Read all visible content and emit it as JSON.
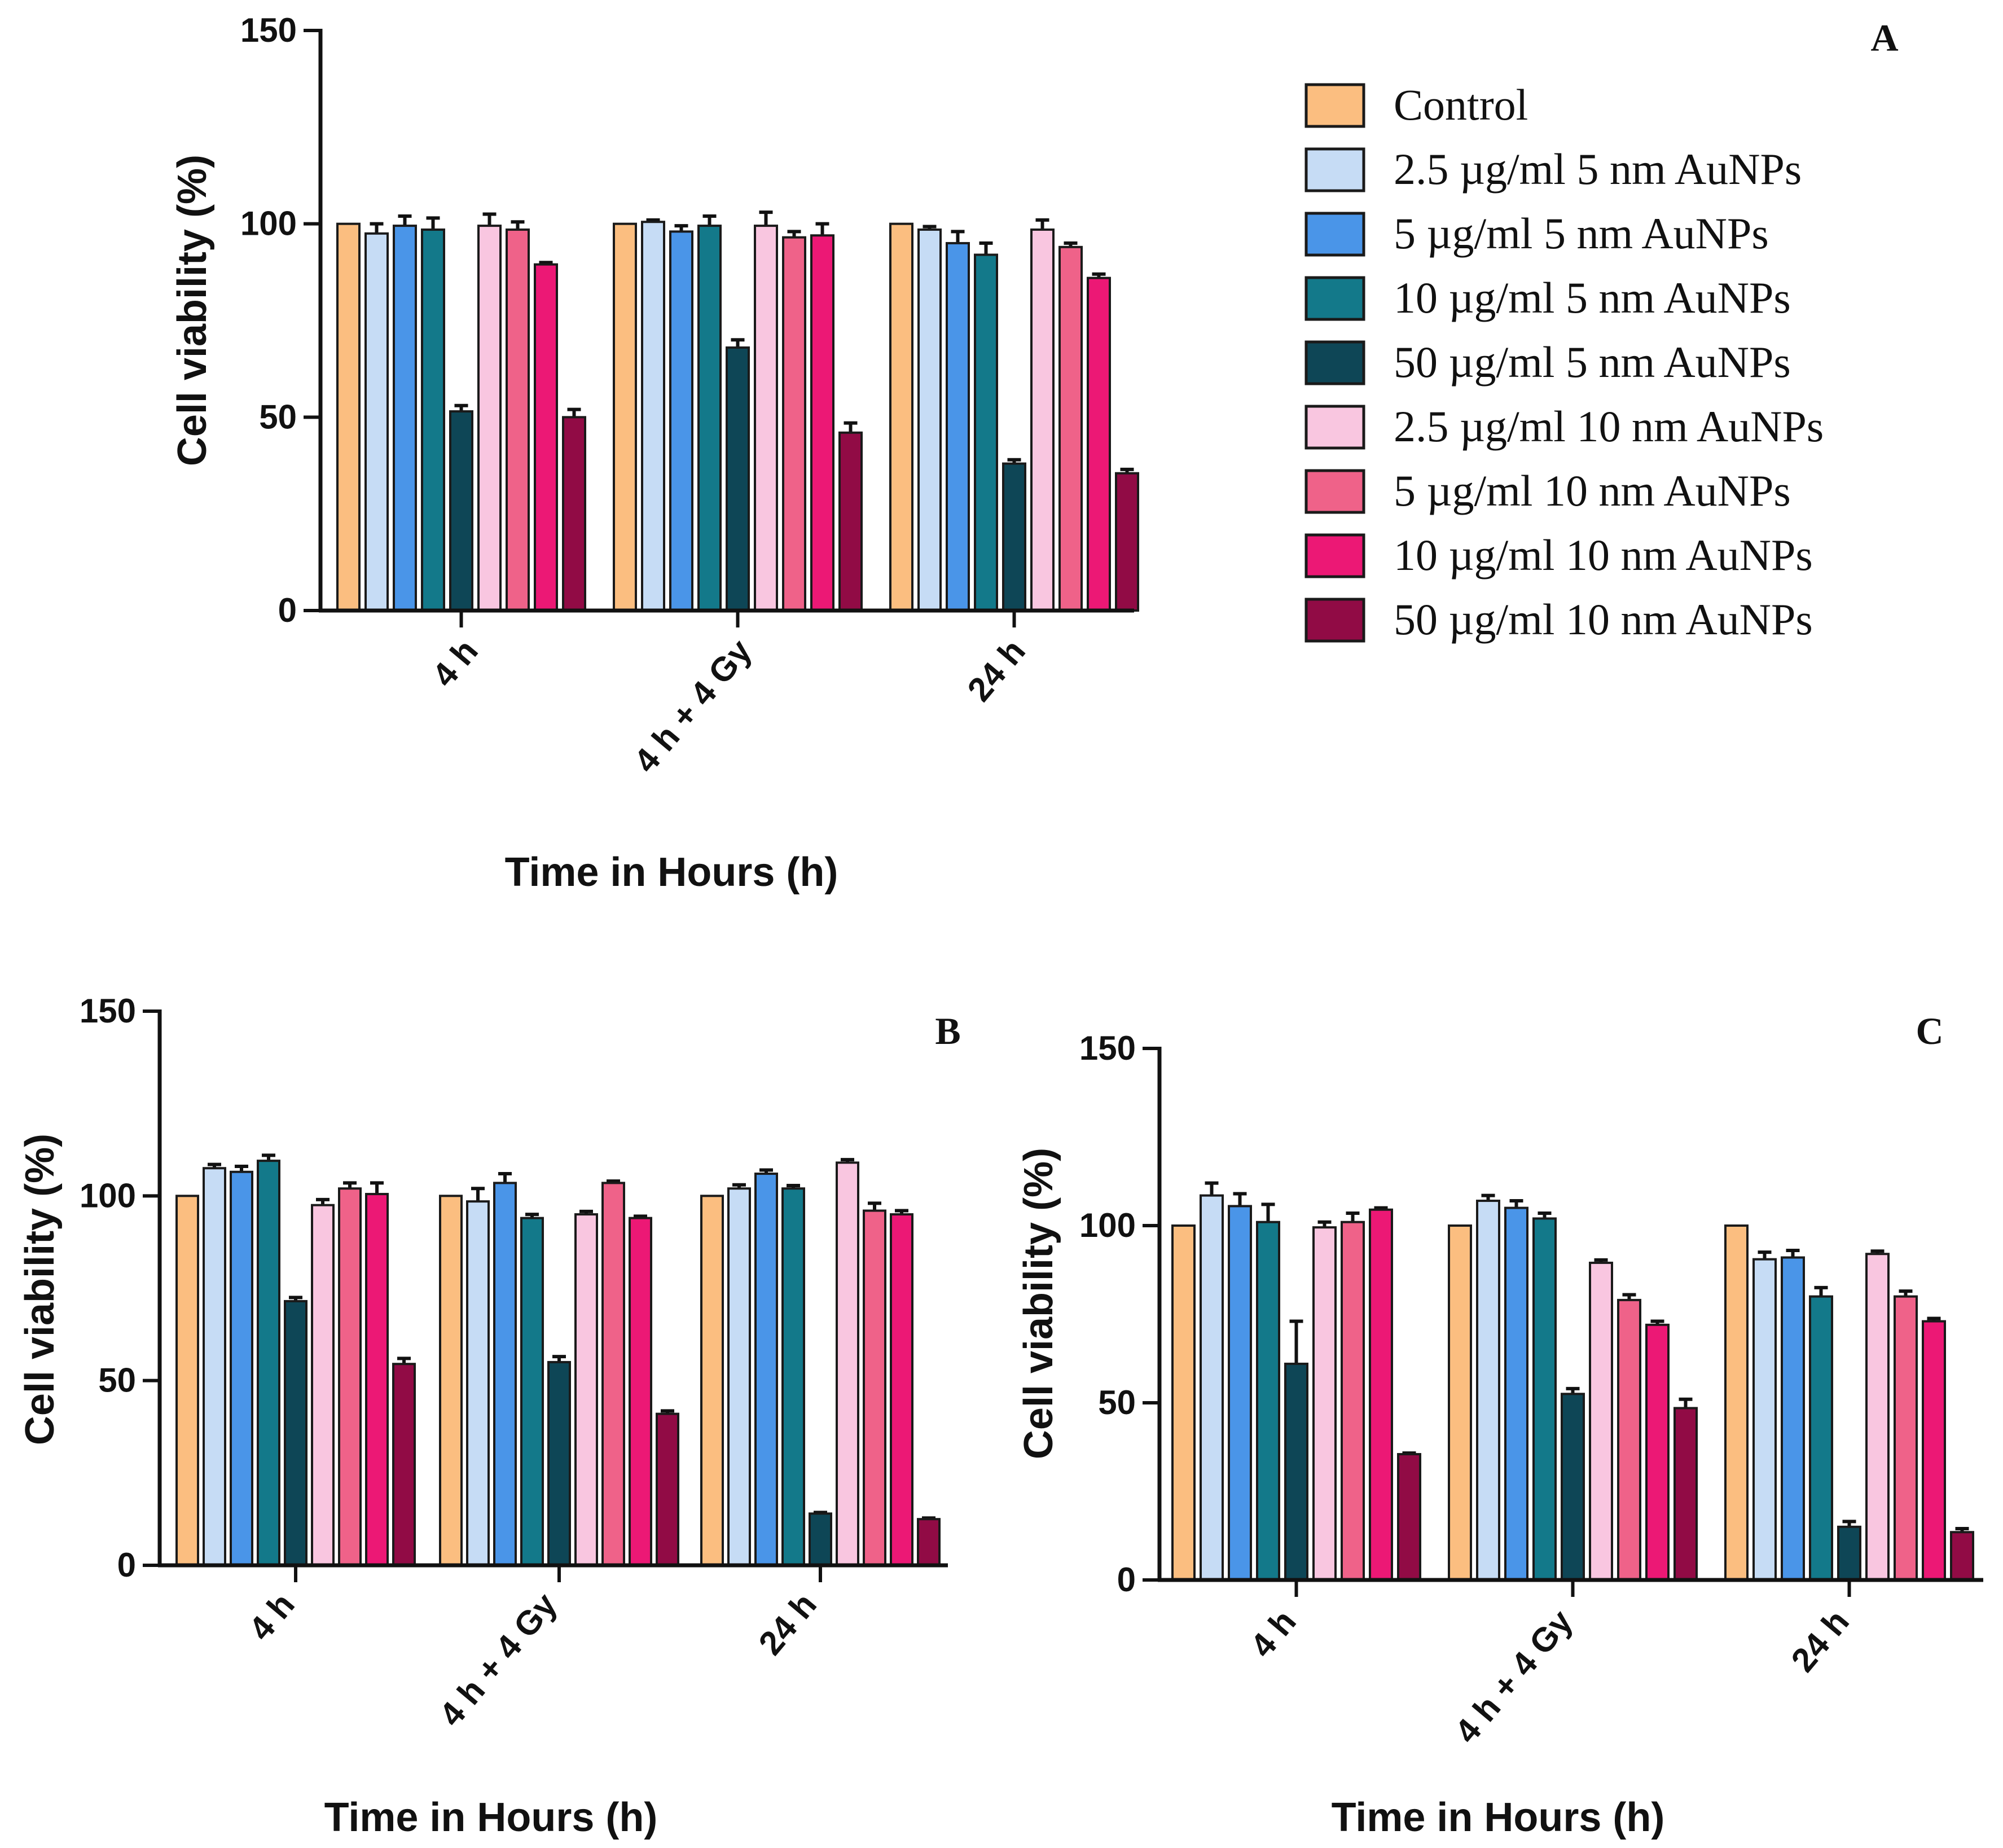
{
  "legend": [
    {
      "label": "Control",
      "color": "#fbbe80"
    },
    {
      "label": "2.5 µg/ml 5 nm AuNPs",
      "color": "#c6dcf5"
    },
    {
      "label": "5 µg/ml 5 nm AuNPs",
      "color": "#4a95e8"
    },
    {
      "label": "10 µg/ml 5 nm AuNPs",
      "color": "#13798a"
    },
    {
      "label": "50 µg/ml 5 nm AuNPs",
      "color": "#0e4656"
    },
    {
      "label": "2.5 µg/ml 10 nm AuNPs",
      "color": "#f9c6e0"
    },
    {
      "label": "5 µg/ml 10 nm AuNPs",
      "color": "#ef6289"
    },
    {
      "label": "10 µg/ml 10 nm AuNPs",
      "color": "#ec1875"
    },
    {
      "label": "50 µg/ml 10 nm AuNPs",
      "color": "#910b45"
    }
  ],
  "chart_data": [
    {
      "type": "bar",
      "panel": "A",
      "title": "A",
      "xlabel": "Time in Hours (h)",
      "ylabel": "Cell viability (%)",
      "ylim": [
        0,
        150
      ],
      "yticks": [
        "0",
        "50",
        "100",
        "150"
      ],
      "categories": [
        "4 h",
        "4 h + 4 Gy",
        "24 h"
      ],
      "series": [
        {
          "name": "Control",
          "values": [
            100,
            100,
            100
          ],
          "errors": [
            0,
            0,
            0
          ]
        },
        {
          "name": "2.5 µg/ml 5 nm AuNPs",
          "values": [
            97.5,
            100.5,
            98.5
          ],
          "errors": [
            2.5,
            0.5,
            0.8
          ]
        },
        {
          "name": "5 µg/ml 5 nm AuNPs",
          "values": [
            99.5,
            98,
            95
          ],
          "errors": [
            2.5,
            1.5,
            3
          ]
        },
        {
          "name": "10 µg/ml 5 nm AuNPs",
          "values": [
            98.5,
            99.5,
            92
          ],
          "errors": [
            3,
            2.5,
            3
          ]
        },
        {
          "name": "50 µg/ml 5 nm AuNPs",
          "values": [
            51.5,
            68,
            38
          ],
          "errors": [
            1.5,
            2,
            1
          ]
        },
        {
          "name": "2.5 µg/ml 10 nm AuNPs",
          "values": [
            99.5,
            99.5,
            98.5
          ],
          "errors": [
            3,
            3.5,
            2.5
          ]
        },
        {
          "name": "5 µg/ml 10 nm AuNPs",
          "values": [
            98.5,
            96.5,
            94
          ],
          "errors": [
            2,
            1.5,
            1
          ]
        },
        {
          "name": "10 µg/ml 10 nm AuNPs",
          "values": [
            89.5,
            97,
            86
          ],
          "errors": [
            0.5,
            3,
            1
          ]
        },
        {
          "name": "50 µg/ml 10 nm AuNPs",
          "values": [
            50,
            46,
            35.5
          ],
          "errors": [
            2,
            2.5,
            1
          ]
        }
      ]
    },
    {
      "type": "bar",
      "panel": "B",
      "title": "B",
      "xlabel": "Time in Hours (h)",
      "ylabel": "Cell viability (%)",
      "ylim": [
        0,
        150
      ],
      "yticks": [
        "0",
        "50",
        "100",
        "150"
      ],
      "categories": [
        "4 h",
        "4 h + 4 Gy",
        "24 h"
      ],
      "series": [
        {
          "name": "Control",
          "values": [
            100,
            100,
            100
          ],
          "errors": [
            0,
            0,
            0
          ]
        },
        {
          "name": "2.5 µg/ml 5 nm AuNPs",
          "values": [
            107.5,
            98.5,
            102
          ],
          "errors": [
            1,
            3.5,
            1
          ]
        },
        {
          "name": "5 µg/ml 5 nm AuNPs",
          "values": [
            106.5,
            103.5,
            106
          ],
          "errors": [
            1.5,
            2.5,
            1
          ]
        },
        {
          "name": "10 µg/ml 5 nm AuNPs",
          "values": [
            109.5,
            94,
            102
          ],
          "errors": [
            1.5,
            1,
            0.8
          ]
        },
        {
          "name": "50 µg/ml 5 nm AuNPs",
          "values": [
            71.5,
            55,
            14
          ],
          "errors": [
            1,
            1.5,
            0.3
          ]
        },
        {
          "name": "2.5 µg/ml 10 nm AuNPs",
          "values": [
            97.5,
            95,
            109
          ],
          "errors": [
            1.5,
            0.8,
            0.8
          ]
        },
        {
          "name": "5 µg/ml 10 nm AuNPs",
          "values": [
            102,
            103.5,
            96
          ],
          "errors": [
            1.5,
            0.5,
            2
          ]
        },
        {
          "name": "10 µg/ml 10 nm AuNPs",
          "values": [
            100.5,
            94,
            95
          ],
          "errors": [
            3,
            0.5,
            1
          ]
        },
        {
          "name": "50 µg/ml 10 nm AuNPs",
          "values": [
            54.5,
            41,
            12.5
          ],
          "errors": [
            1.5,
            0.8,
            0.3
          ]
        }
      ]
    },
    {
      "type": "bar",
      "panel": "C",
      "title": "C",
      "xlabel": "Time in Hours (h)",
      "ylabel": "Cell viability (%)",
      "ylim": [
        0,
        150
      ],
      "yticks": [
        "0",
        "50",
        "100",
        "150"
      ],
      "categories": [
        "4 h",
        "4 h + 4 Gy",
        "24 h"
      ],
      "series": [
        {
          "name": "Control",
          "values": [
            100,
            100,
            100
          ],
          "errors": [
            0,
            0,
            0
          ]
        },
        {
          "name": "2.5 µg/ml 5 nm AuNPs",
          "values": [
            108.5,
            107,
            90.5
          ],
          "errors": [
            3.5,
            1.5,
            2
          ]
        },
        {
          "name": "5 µg/ml 5 nm AuNPs",
          "values": [
            105.5,
            105,
            91
          ],
          "errors": [
            3.5,
            2,
            2
          ]
        },
        {
          "name": "10 µg/ml 5 nm AuNPs",
          "values": [
            101,
            102,
            80
          ],
          "errors": [
            5,
            1.5,
            2.5
          ]
        },
        {
          "name": "50 µg/ml 5 nm AuNPs",
          "values": [
            61,
            52.5,
            15
          ],
          "errors": [
            12,
            1.5,
            1.5
          ]
        },
        {
          "name": "2.5 µg/ml 10 nm AuNPs",
          "values": [
            99.5,
            89.5,
            92
          ],
          "errors": [
            1.5,
            0.8,
            0.8
          ]
        },
        {
          "name": "5 µg/ml 10 nm AuNPs",
          "values": [
            101,
            79,
            80
          ],
          "errors": [
            2.5,
            1.5,
            1.5
          ]
        },
        {
          "name": "10 µg/ml 10 nm AuNPs",
          "values": [
            104.5,
            72,
            73
          ],
          "errors": [
            0.5,
            1,
            0.8
          ]
        },
        {
          "name": "50 µg/ml 10 nm AuNPs",
          "values": [
            35.5,
            48.5,
            13.5
          ],
          "errors": [
            0.3,
            2.5,
            1
          ]
        }
      ]
    }
  ]
}
